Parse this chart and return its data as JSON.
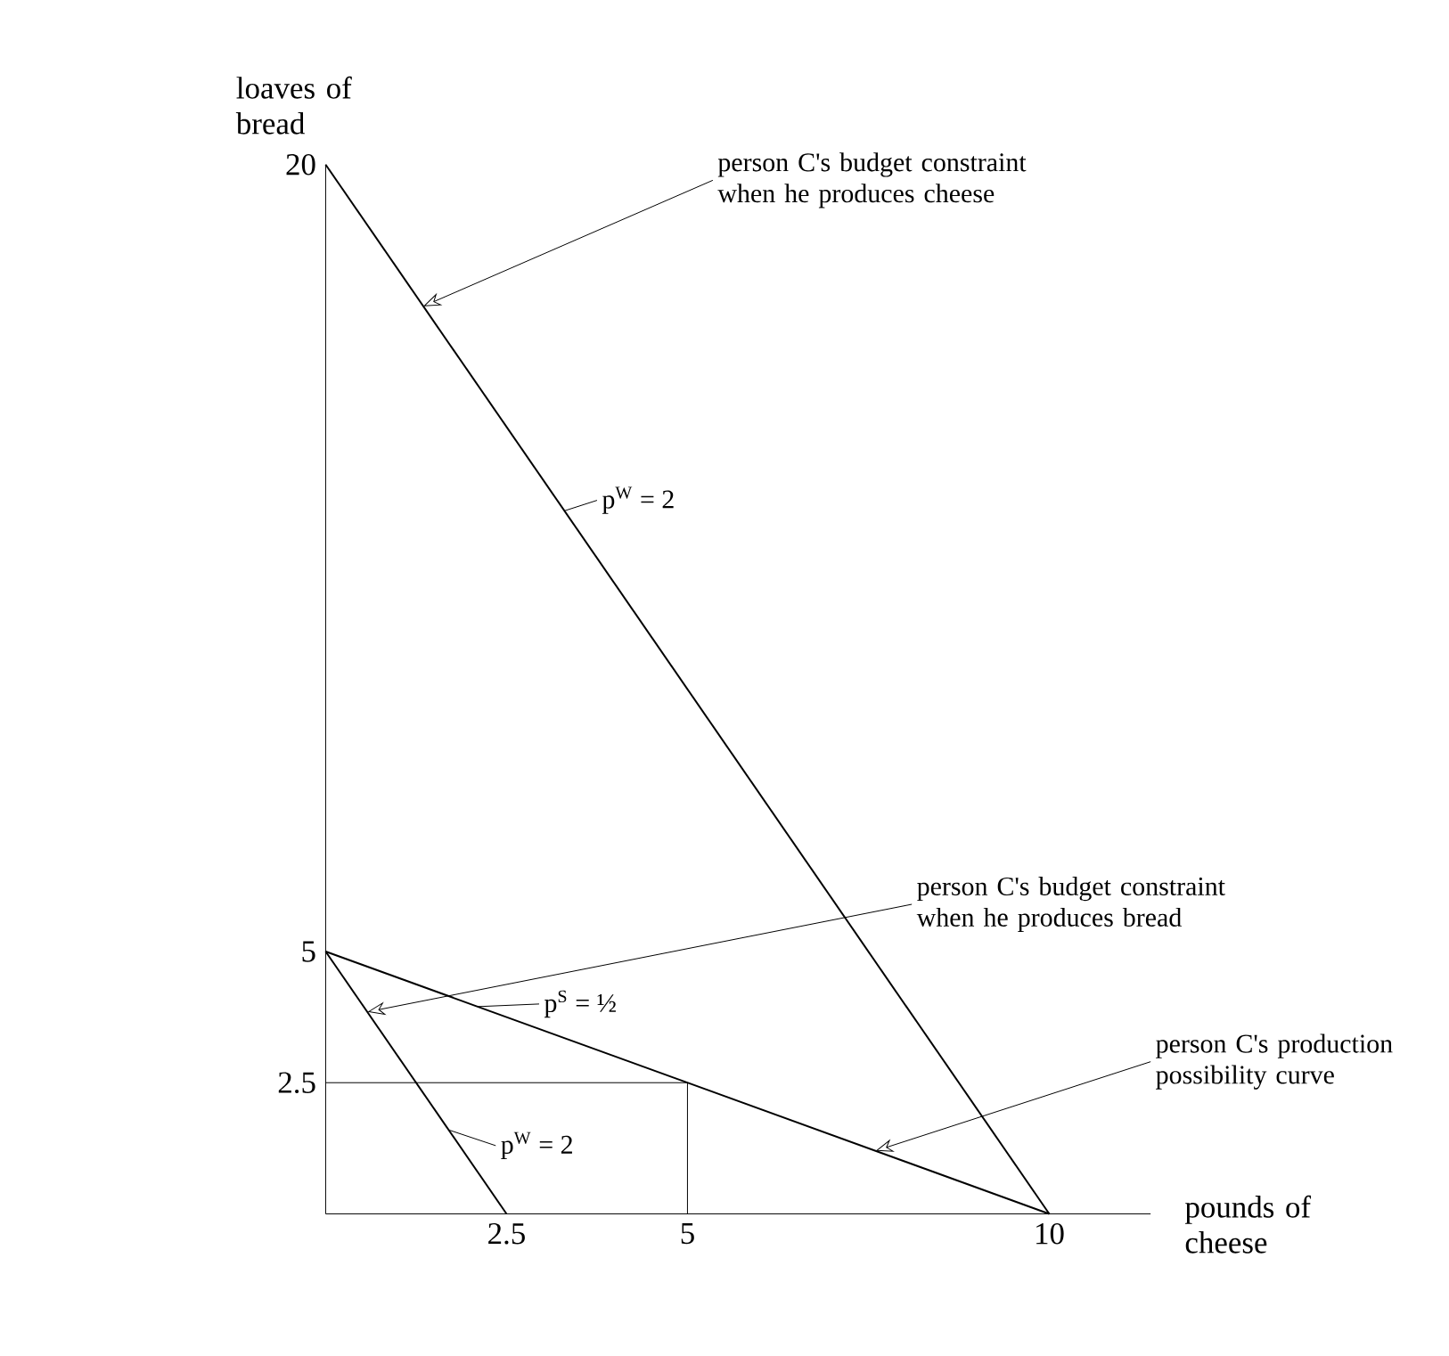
{
  "chart_data": {
    "type": "line",
    "xlabel": "pounds of cheese",
    "ylabel": "loaves of bread",
    "xlim": [
      0,
      11.4
    ],
    "ylim": [
      0,
      20
    ],
    "xticks": [
      2.5,
      5,
      10
    ],
    "yticks": [
      2.5,
      5,
      20
    ],
    "grid": false,
    "marker": "none",
    "line_style": "solid",
    "series": [
      {
        "color": "#000000",
        "x": [
          0,
          10
        ],
        "values": [
          20,
          0
        ]
      },
      {
        "color": "#000000",
        "x": [
          0,
          2.5
        ],
        "values": [
          5,
          0
        ]
      },
      {
        "color": "#000000",
        "x": [
          0,
          10
        ],
        "values": [
          5,
          0
        ]
      },
      {
        "color": "#000000",
        "x": [
          0,
          5,
          5
        ],
        "values": [
          2.5,
          2.5,
          0
        ]
      }
    ],
    "annotations": [
      {
        "text": "person C's budget constraint when he produces cheese",
        "x": 1.35,
        "y": 17.3
      },
      {
        "text": "person C's budget constraint when he produces bread",
        "x": 0.58,
        "y": 3.85
      },
      {
        "text": "person C's production possibility curve",
        "x": 7.6,
        "y": 1.2
      },
      {
        "text": "p$^{W}$ = 2",
        "x": 3.3,
        "y": 13.4
      },
      {
        "text": "p$^{S}$ = ½",
        "x": 2.1,
        "y": 3.95
      },
      {
        "text": "p$^{W}$ = 2",
        "x": 1.7,
        "y": 1.6
      }
    ]
  }
}
